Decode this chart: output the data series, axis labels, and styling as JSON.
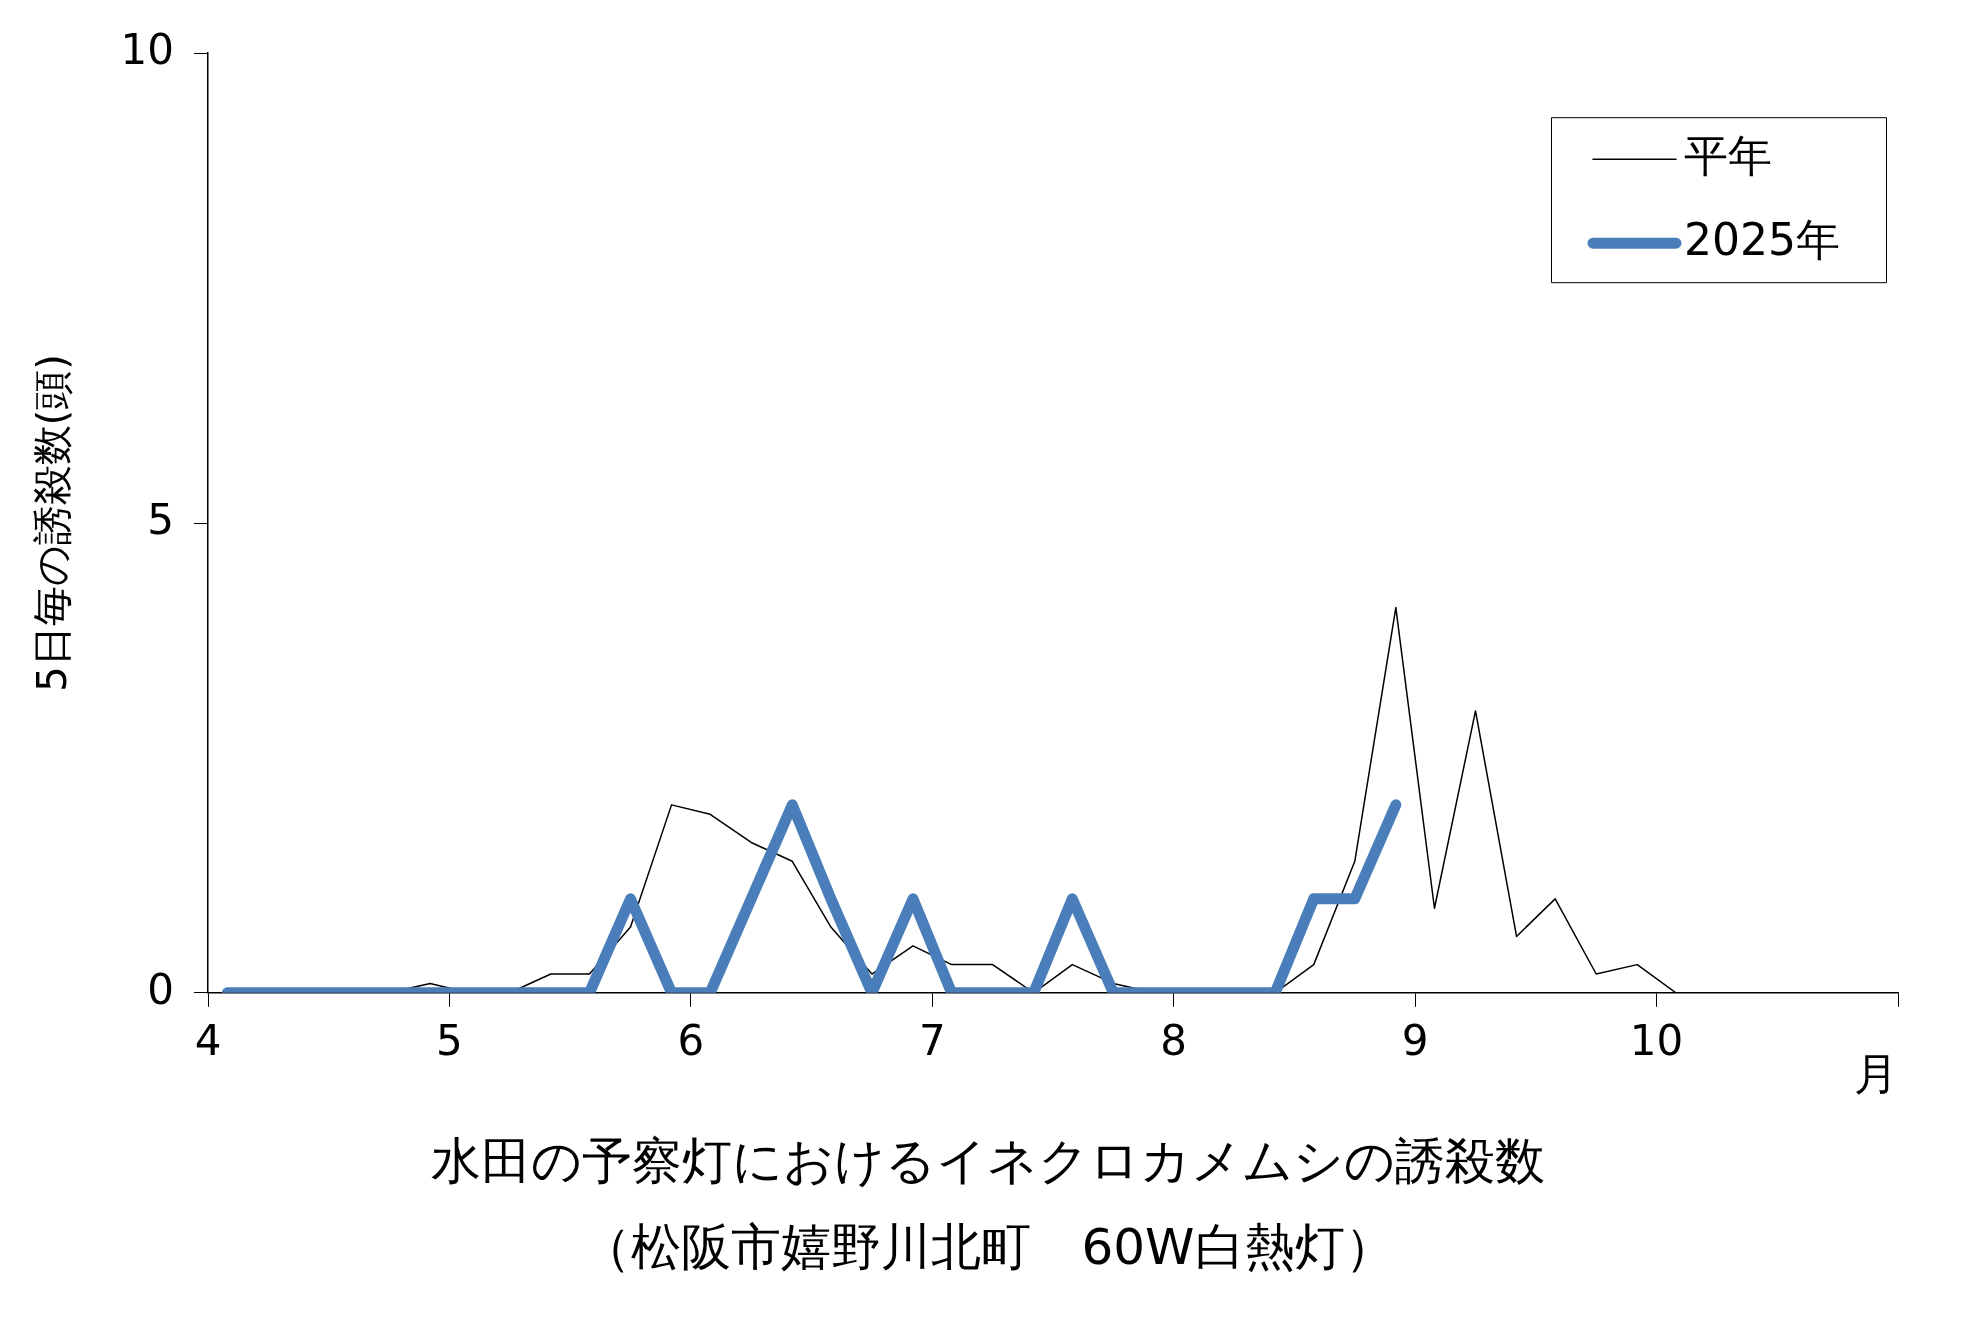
{
  "chart_data": {
    "type": "line",
    "title": "水田の予察灯におけるイネクロカメムシの誘殺数",
    "subtitle": "（松阪市嬉野川北町　60W白熱灯）",
    "xlabel": "月",
    "ylabel": "5日毎の誘殺数(頭)",
    "x": [
      4.08,
      4.25,
      4.42,
      4.58,
      4.75,
      4.92,
      5.08,
      5.25,
      5.42,
      5.58,
      5.75,
      5.92,
      6.08,
      6.25,
      6.42,
      6.58,
      6.75,
      6.92,
      7.08,
      7.25,
      7.42,
      7.58,
      7.75,
      7.92,
      8.08,
      8.25,
      8.42,
      8.58,
      8.75,
      8.92,
      9.08,
      9.25,
      9.42,
      9.58,
      9.75,
      9.92,
      10.08
    ],
    "series": [
      {
        "name": "平年",
        "color": "#000000",
        "values": [
          0,
          0,
          0,
          0,
          0,
          0.1,
          0,
          0,
          0.2,
          0.2,
          0.7,
          2.0,
          1.9,
          1.6,
          1.4,
          0.7,
          0.2,
          0.5,
          0.3,
          0.3,
          0,
          0.3,
          0.1,
          0,
          0,
          0,
          0,
          0.3,
          1.4,
          4.1,
          0.9,
          3.0,
          0.6,
          1.0,
          0.2,
          0.3,
          0
        ]
      },
      {
        "name": "2025年",
        "color": "#4a7ebb",
        "x": [
          4.08,
          4.25,
          4.42,
          4.58,
          4.75,
          4.92,
          5.08,
          5.25,
          5.42,
          5.58,
          5.75,
          5.92,
          6.08,
          6.25,
          6.42,
          6.58,
          6.75,
          6.92,
          7.08,
          7.25,
          7.42,
          7.58,
          7.75,
          7.92,
          8.08,
          8.25,
          8.42,
          8.58,
          8.75,
          8.92
        ],
        "values": [
          0,
          0,
          0,
          0,
          0,
          0,
          0,
          0,
          0,
          0,
          1,
          0,
          0,
          1,
          2,
          1,
          0,
          1,
          0,
          0,
          0,
          1,
          0,
          0,
          0,
          0,
          0,
          1,
          1,
          2
        ]
      }
    ],
    "xlim": [
      4,
      11
    ],
    "xticks": [
      4,
      5,
      6,
      7,
      8,
      9,
      10,
      {
        "value": 11,
        "label": null
      }
    ],
    "ylim": [
      0,
      10
    ],
    "yticks": [
      0,
      5,
      10
    ],
    "grid": false,
    "legend": "top right",
    "marker": "none",
    "line_style": "solid"
  }
}
